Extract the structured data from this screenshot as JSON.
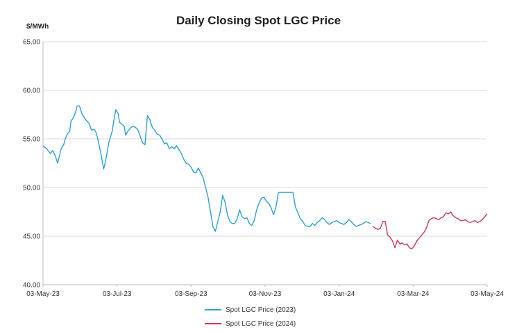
{
  "chart_data": {
    "type": "line",
    "title": "Daily Closing Spot LGC Price",
    "ylabel": "$/MWh",
    "xlabel": "",
    "ylim": [
      40,
      65
    ],
    "yticks": [
      "40.00",
      "45.00",
      "50.00",
      "55.00",
      "60.00",
      "65.00"
    ],
    "x_tick_labels": [
      "03-May-23",
      "03-Jul-23",
      "03-Sep-23",
      "03-Nov-23",
      "03-Jan-24",
      "03-Mar-24",
      "03-May-24"
    ],
    "x_unit": "days since 03-May-23",
    "xlim": [
      0,
      366
    ],
    "grid": "horizontal",
    "legend_position": "bottom",
    "series": [
      {
        "name": "Spot LGC Price (2023)",
        "color": "#2e9fcf",
        "x": [
          0,
          3,
          6,
          8,
          10,
          12,
          14,
          15,
          16,
          17,
          18,
          20,
          22,
          23,
          25,
          27,
          28,
          30,
          32,
          35,
          38,
          40,
          42,
          44,
          46,
          48,
          50,
          52,
          54,
          55,
          57,
          58,
          60,
          62,
          63,
          65,
          67,
          68,
          70,
          72,
          74,
          76,
          78,
          80,
          82,
          84,
          86,
          88,
          90,
          92,
          94,
          96,
          98,
          100,
          102,
          104,
          106,
          108,
          110,
          112,
          114,
          116,
          118,
          120,
          122,
          124,
          126,
          128,
          130,
          132,
          134,
          136,
          138,
          140,
          142,
          144,
          146,
          148,
          150,
          152,
          154,
          156,
          158,
          160,
          162,
          164,
          166,
          168,
          170,
          172,
          174,
          176,
          178,
          180,
          182,
          184,
          186,
          188,
          190,
          192,
          194,
          196,
          198,
          200,
          202,
          204,
          206,
          208,
          210,
          212,
          214,
          216,
          218,
          220,
          222,
          224,
          226,
          228,
          230,
          232,
          234,
          236,
          238,
          240,
          242,
          244,
          246,
          248,
          250,
          252,
          254,
          256,
          258,
          260,
          262,
          264,
          266,
          268,
          270
        ],
        "values": [
          54.3,
          54.0,
          53.5,
          53.8,
          53.3,
          52.5,
          53.5,
          54.0,
          54.2,
          54.4,
          54.9,
          55.5,
          55.8,
          56.8,
          57.2,
          57.8,
          58.4,
          58.4,
          57.6,
          57.0,
          56.6,
          55.9,
          56.0,
          55.6,
          54.5,
          53.3,
          51.9,
          53.0,
          54.5,
          55.0,
          55.8,
          56.6,
          58.0,
          57.6,
          56.7,
          56.5,
          56.3,
          55.4,
          55.8,
          56.1,
          56.3,
          56.2,
          56.0,
          55.3,
          54.6,
          54.4,
          57.4,
          57.0,
          56.2,
          55.9,
          55.5,
          55.4,
          55.0,
          54.5,
          54.6,
          54.0,
          54.2,
          54.0,
          54.3,
          53.9,
          53.5,
          52.9,
          52.5,
          52.4,
          52.1,
          51.6,
          51.5,
          52.0,
          51.5,
          51.0,
          50.0,
          49.0,
          47.5,
          46.0,
          45.5,
          46.5,
          47.5,
          49.2,
          48.5,
          47.2,
          46.5,
          46.3,
          46.3,
          46.8,
          47.7,
          47.0,
          46.8,
          46.9,
          46.3,
          46.1,
          46.6,
          47.7,
          48.4,
          48.9,
          49.0,
          48.6,
          48.4,
          47.9,
          47.2,
          48.0,
          49.5,
          49.5,
          49.5,
          49.5,
          49.5,
          49.5,
          49.5,
          48.0,
          47.4,
          46.8,
          46.5,
          46.1,
          46.0,
          46.0,
          46.3,
          46.1,
          46.4,
          46.6,
          46.9,
          46.7,
          46.4,
          46.2,
          46.4,
          46.5,
          46.6,
          46.4,
          46.3,
          46.2,
          46.4,
          46.7,
          46.5,
          46.2,
          46.0,
          46.1,
          46.2,
          46.3,
          46.5,
          46.4,
          46.3
        ]
      },
      {
        "name": "Spot LGC Price (2024)",
        "color": "#c8385f",
        "x": [
          272,
          274,
          276,
          278,
          280,
          282,
          284,
          286,
          288,
          290,
          292,
          294,
          296,
          298,
          300,
          302,
          304,
          306,
          308,
          310,
          312,
          314,
          316,
          318,
          320,
          322,
          324,
          326,
          328,
          330,
          332,
          334,
          336,
          338,
          340,
          342,
          344,
          346,
          348,
          350,
          352,
          354,
          356,
          358,
          360,
          362,
          364,
          366
        ],
        "values": [
          46.0,
          45.8,
          45.7,
          45.8,
          46.5,
          46.5,
          45.1,
          44.9,
          44.5,
          43.8,
          44.6,
          44.2,
          44.3,
          44.1,
          44.2,
          43.8,
          43.7,
          44.0,
          44.5,
          44.8,
          45.1,
          45.4,
          45.9,
          46.6,
          46.8,
          46.9,
          46.8,
          46.7,
          46.9,
          47.0,
          47.4,
          47.3,
          47.5,
          47.1,
          46.9,
          46.8,
          46.6,
          46.6,
          46.7,
          46.5,
          46.4,
          46.5,
          46.6,
          46.4,
          46.5,
          46.7,
          47.0,
          47.3
        ]
      }
    ]
  }
}
